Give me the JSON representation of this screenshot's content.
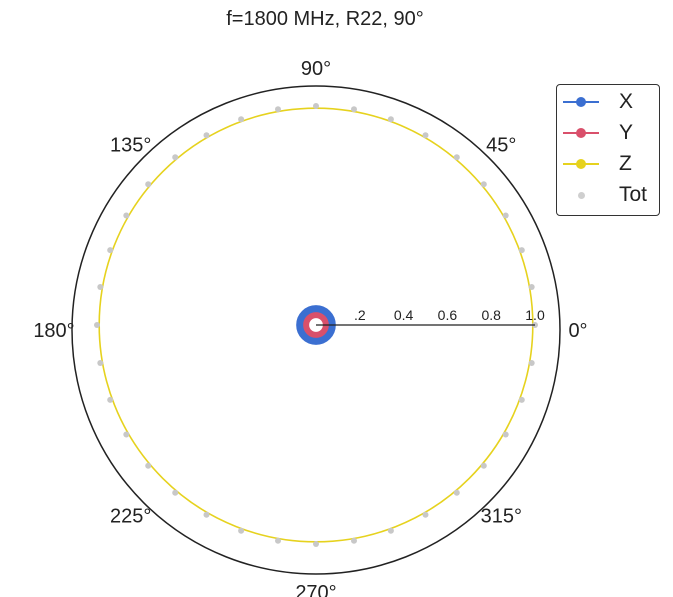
{
  "chart_data": {
    "type": "polar",
    "title": "f=1800 MHz, R22, 90°",
    "angle_labels": [
      "0°",
      "45°",
      "90°",
      "135°",
      "180°",
      "225°",
      "270°",
      "315°"
    ],
    "radial_ticks": [
      ".2",
      "0.4",
      "0.6",
      "0.8",
      "1.0"
    ],
    "rlim": [
      0,
      1.0
    ],
    "radial_axis_angle_deg": 0,
    "legend_position": "top-right",
    "series": [
      {
        "name": "X",
        "color": "#3b6fd1",
        "style": "line",
        "radius": 0.07
      },
      {
        "name": "Y",
        "color": "#d9506b",
        "style": "line",
        "radius": 0.045
      },
      {
        "name": "Z",
        "color": "#e6d21e",
        "style": "line",
        "radius": 0.99
      },
      {
        "name": "Tot",
        "color": "#c8c8c8",
        "style": "marker",
        "radius": 1.0,
        "marker_step_deg": 10
      }
    ]
  }
}
